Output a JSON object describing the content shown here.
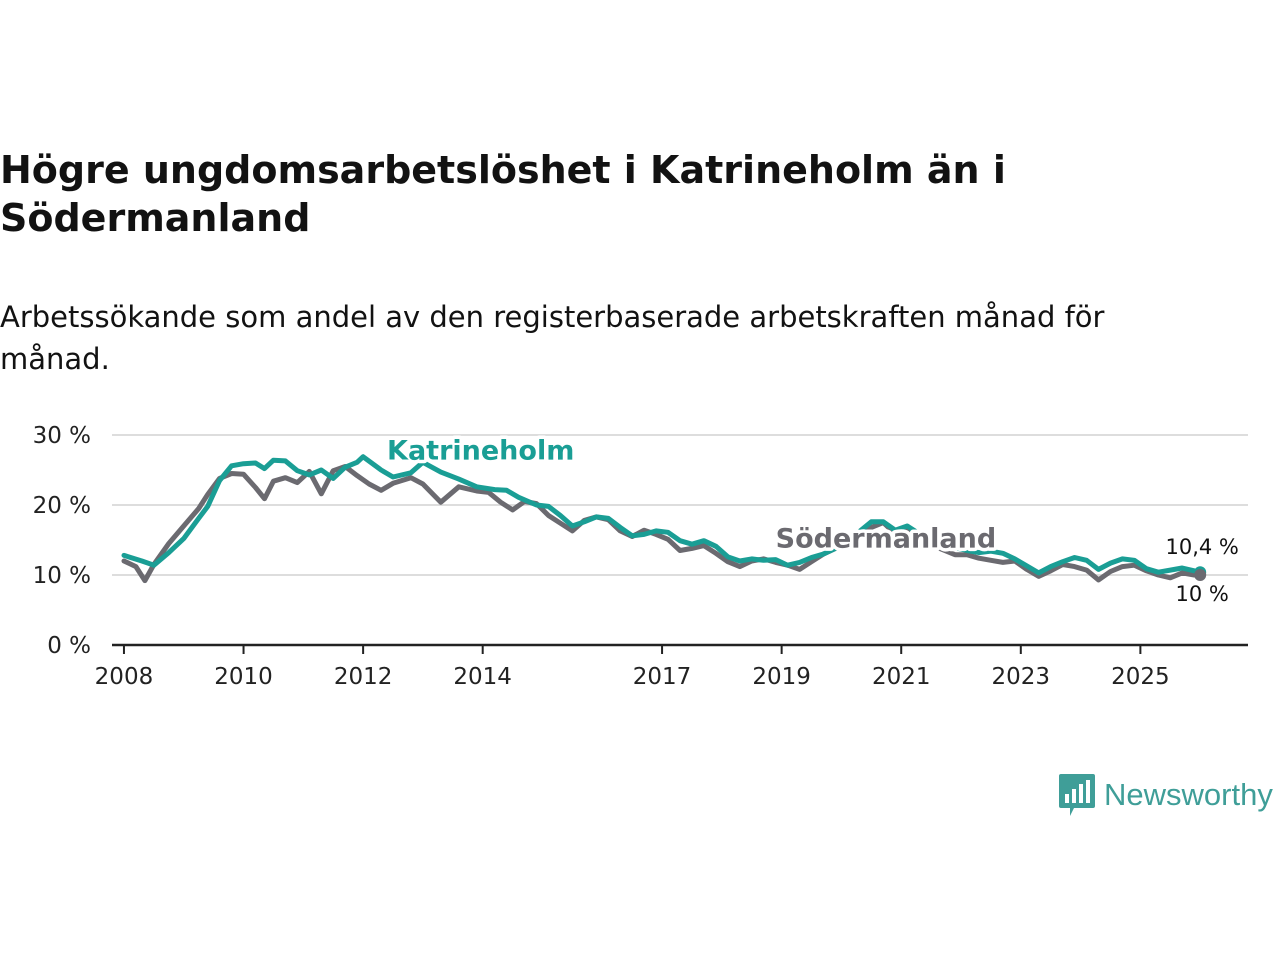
{
  "title": "Högre ungdomsarbetslöshet i Katrineholm än i Södermanland",
  "subtitle": "Arbetssökande som andel av den registerbaserade arbetskraften månad för månad.",
  "brand": {
    "name": "Newsworthy",
    "icon": "bar-chart-speech-bubble-icon"
  },
  "colors": {
    "katrineholm": "#1a9e95",
    "sodermanland": "#6b6a70",
    "grid": "#dddddd",
    "axis": "#222222"
  },
  "chart_data": {
    "type": "line",
    "title": "Högre ungdomsarbetslöshet i Katrineholm än i Södermanland",
    "xlabel": "",
    "ylabel": "",
    "xlim": [
      2007.8,
      2026.8
    ],
    "ylim": [
      0,
      30
    ],
    "grid": true,
    "x_ticks": [
      {
        "value": 2008,
        "label": "2008"
      },
      {
        "value": 2010,
        "label": "2010"
      },
      {
        "value": 2012,
        "label": "2012"
      },
      {
        "value": 2014,
        "label": "2014"
      },
      {
        "value": 2017,
        "label": "2017"
      },
      {
        "value": 2019,
        "label": "2019"
      },
      {
        "value": 2021,
        "label": "2021"
      },
      {
        "value": 2023,
        "label": "2023"
      },
      {
        "value": 2025,
        "label": "2025"
      }
    ],
    "y_ticks": [
      {
        "value": 0,
        "label": "0 %"
      },
      {
        "value": 10,
        "label": "10 %"
      },
      {
        "value": 20,
        "label": "20 %"
      },
      {
        "value": 30,
        "label": "30 %"
      }
    ],
    "series": [
      {
        "name": "Katrineholm",
        "color": "#1a9e95",
        "label_at": [
          2012.4,
          26.5
        ],
        "end_label": "10,4 %",
        "x": [
          2008.0,
          2008.3,
          2008.5,
          2008.75,
          2009.0,
          2009.25,
          2009.4,
          2009.6,
          2009.8,
          2010.0,
          2010.2,
          2010.35,
          2010.5,
          2010.7,
          2010.9,
          2011.1,
          2011.3,
          2011.5,
          2011.7,
          2011.9,
          2012.0,
          2012.3,
          2012.5,
          2012.8,
          2013.0,
          2013.3,
          2013.6,
          2013.9,
          2014.2,
          2014.4,
          2014.6,
          2014.9,
          2015.1,
          2015.3,
          2015.5,
          2015.7,
          2015.9,
          2016.1,
          2016.3,
          2016.5,
          2016.7,
          2016.9,
          2017.1,
          2017.3,
          2017.5,
          2017.7,
          2017.9,
          2018.1,
          2018.3,
          2018.5,
          2018.7,
          2018.9,
          2019.1,
          2019.3,
          2019.5,
          2019.7,
          2019.9,
          2020.1,
          2020.3,
          2020.5,
          2020.7,
          2020.9,
          2021.1,
          2021.3,
          2021.5,
          2021.7,
          2021.9,
          2022.1,
          2022.3,
          2022.5,
          2022.7,
          2022.9,
          2023.1,
          2023.3,
          2023.5,
          2023.7,
          2023.9,
          2024.1,
          2024.3,
          2024.5,
          2024.7,
          2024.9,
          2025.1,
          2025.3,
          2025.5,
          2025.7,
          2025.9,
          2026.0
        ],
        "y": [
          12.8,
          12.0,
          11.4,
          13.2,
          15.2,
          18.1,
          19.8,
          23.5,
          25.6,
          25.9,
          26.0,
          25.2,
          26.4,
          26.3,
          24.9,
          24.3,
          25.0,
          23.8,
          25.4,
          26.1,
          26.9,
          25.0,
          24.0,
          24.6,
          26.1,
          24.7,
          23.7,
          22.6,
          22.2,
          22.1,
          21.1,
          20.0,
          19.8,
          18.5,
          17.0,
          17.6,
          18.3,
          18.1,
          16.8,
          15.6,
          15.8,
          16.3,
          16.1,
          14.9,
          14.4,
          14.9,
          14.1,
          12.6,
          12.0,
          12.3,
          12.1,
          12.2,
          11.4,
          11.8,
          12.5,
          13.0,
          13.8,
          15.0,
          16.2,
          17.6,
          17.6,
          16.4,
          17.0,
          15.9,
          15.2,
          14.5,
          13.9,
          13.5,
          13.2,
          13.4,
          13.1,
          12.3,
          11.3,
          10.3,
          11.2,
          11.9,
          12.5,
          12.1,
          10.8,
          11.7,
          12.3,
          12.1,
          10.9,
          10.4,
          10.7,
          11.0,
          10.6,
          10.4
        ]
      },
      {
        "name": "Södermanland",
        "color": "#6b6a70",
        "label_at": [
          2018.9,
          13.9
        ],
        "end_label": "10 %",
        "x": [
          2008.0,
          2008.2,
          2008.35,
          2008.5,
          2008.75,
          2009.0,
          2009.25,
          2009.4,
          2009.6,
          2009.8,
          2010.0,
          2010.2,
          2010.35,
          2010.5,
          2010.7,
          2010.9,
          2011.1,
          2011.3,
          2011.5,
          2011.7,
          2011.9,
          2012.1,
          2012.3,
          2012.5,
          2012.8,
          2013.0,
          2013.3,
          2013.6,
          2013.9,
          2014.1,
          2014.3,
          2014.5,
          2014.7,
          2014.9,
          2015.1,
          2015.3,
          2015.5,
          2015.7,
          2015.9,
          2016.1,
          2016.3,
          2016.5,
          2016.7,
          2016.9,
          2017.1,
          2017.3,
          2017.5,
          2017.7,
          2017.9,
          2018.1,
          2018.3,
          2018.5,
          2018.7,
          2018.9,
          2019.1,
          2019.3,
          2019.5,
          2019.7,
          2019.9,
          2020.1,
          2020.3,
          2020.5,
          2020.7,
          2020.9,
          2021.1,
          2021.3,
          2021.5,
          2021.7,
          2021.9,
          2022.1,
          2022.3,
          2022.5,
          2022.7,
          2022.9,
          2023.1,
          2023.3,
          2023.5,
          2023.7,
          2023.9,
          2024.1,
          2024.3,
          2024.5,
          2024.7,
          2024.9,
          2025.1,
          2025.3,
          2025.5,
          2025.7,
          2025.9,
          2026.0
        ],
        "y": [
          12.0,
          11.2,
          9.2,
          11.5,
          14.5,
          17.0,
          19.5,
          21.5,
          23.8,
          24.5,
          24.4,
          22.5,
          20.9,
          23.4,
          23.9,
          23.2,
          24.8,
          21.6,
          24.9,
          25.5,
          24.2,
          23.0,
          22.1,
          23.1,
          23.9,
          23.0,
          20.4,
          22.6,
          22.0,
          21.8,
          20.4,
          19.3,
          20.5,
          20.2,
          18.5,
          17.4,
          16.3,
          17.8,
          18.3,
          17.9,
          16.3,
          15.5,
          16.4,
          15.8,
          15.1,
          13.5,
          13.8,
          14.2,
          13.1,
          11.9,
          11.2,
          12.0,
          12.3,
          11.8,
          11.4,
          10.8,
          11.9,
          13.0,
          13.8,
          14.5,
          15.6,
          16.8,
          17.5,
          15.9,
          16.4,
          15.1,
          14.3,
          13.6,
          12.9,
          12.9,
          12.4,
          12.1,
          11.8,
          12.0,
          10.8,
          9.8,
          10.6,
          11.5,
          11.2,
          10.7,
          9.3,
          10.5,
          11.2,
          11.4,
          10.6,
          10.0,
          9.6,
          10.3,
          10.0,
          10.0
        ]
      }
    ]
  }
}
